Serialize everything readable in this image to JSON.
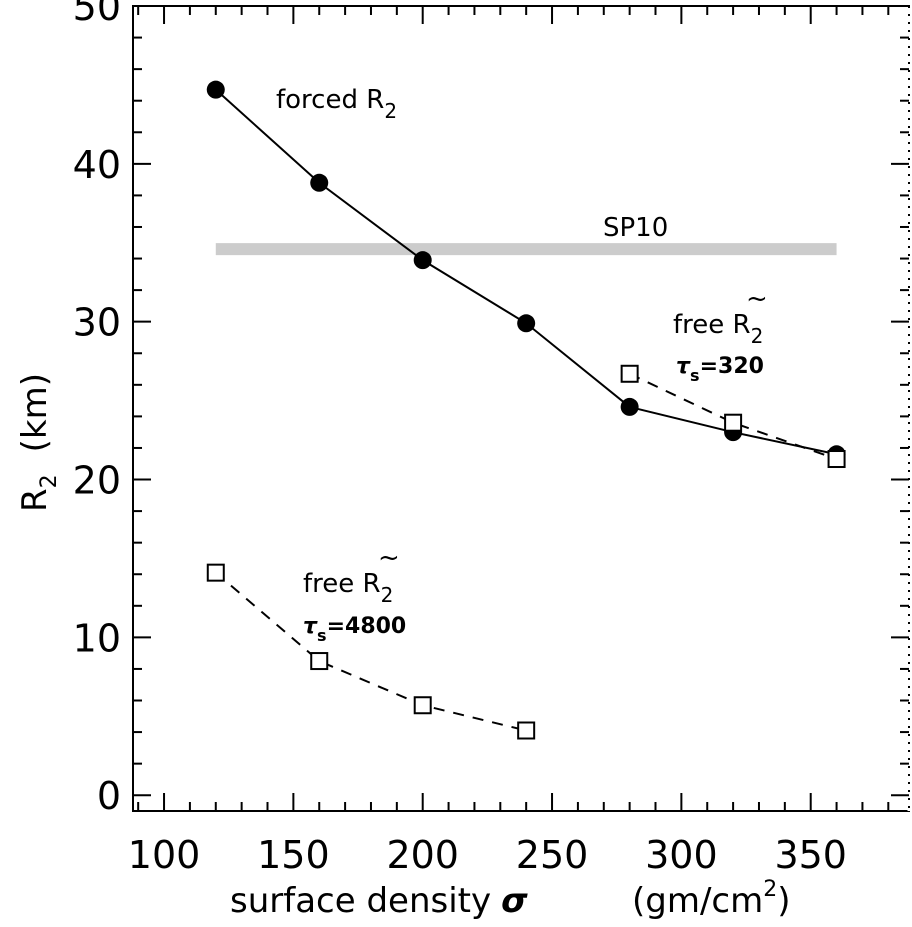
{
  "chart_data": {
    "type": "line",
    "xlabel": "surface density",
    "xlabel_symbol": "σ",
    "xlabel_units": "(gm/cm",
    "xlabel_units_sup": "2",
    "xlabel_units_close": ")",
    "ylabel_main": "R",
    "ylabel_sub": "2",
    "ylabel_units": "(km)",
    "xlim": [
      88,
      388
    ],
    "ylim": [
      -1,
      50
    ],
    "x_ticks": [
      100,
      150,
      200,
      250,
      300,
      350
    ],
    "x_tick_labels": [
      "100",
      "150",
      "200",
      "250",
      "300",
      "350"
    ],
    "y_ticks": [
      0,
      10,
      20,
      30,
      40,
      50
    ],
    "y_tick_labels": [
      "0",
      "10",
      "20",
      "30",
      "40",
      "50"
    ],
    "grid": false,
    "series": [
      {
        "key": "forced",
        "style": "solid",
        "marker": "filled-circle",
        "x": [
          120,
          160,
          200,
          240,
          280,
          320,
          360
        ],
        "y": [
          44.7,
          38.8,
          33.9,
          29.9,
          24.6,
          23.0,
          21.6
        ]
      },
      {
        "key": "free_320",
        "style": "dashed",
        "marker": "open-square",
        "x": [
          280,
          320,
          360
        ],
        "y": [
          26.7,
          23.6,
          21.3
        ]
      },
      {
        "key": "free_4800",
        "style": "dashed",
        "marker": "open-square",
        "x": [
          120,
          160,
          200,
          240
        ],
        "y": [
          14.1,
          8.5,
          5.7,
          4.1
        ]
      }
    ],
    "reference_band": {
      "label": "SP10",
      "x_start": 120,
      "x_end": 360,
      "y": 34.6,
      "color": "#cccccc"
    },
    "annotations": {
      "forced": {
        "text": "forced R",
        "sub": "2"
      },
      "free_320": {
        "text": "free R",
        "tilde": "~",
        "sub": "2",
        "tau": "τ",
        "tau_sub": "s",
        "tau_value": "=320"
      },
      "free_4800": {
        "text": "free R",
        "tilde": "~",
        "sub": "2",
        "tau": "τ",
        "tau_sub": "s",
        "tau_value": "=4800"
      }
    }
  }
}
